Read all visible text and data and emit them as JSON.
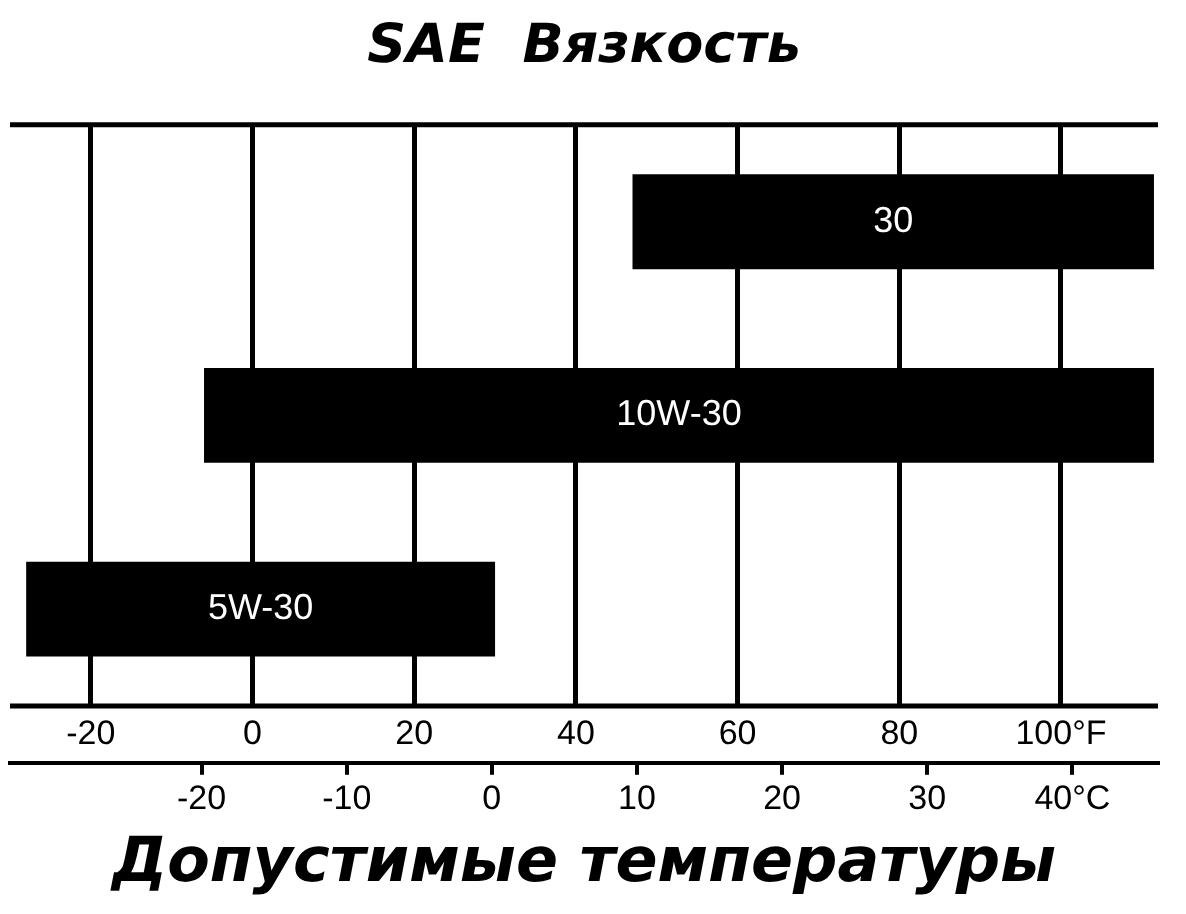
{
  "chart_data": {
    "type": "bar",
    "orientation": "horizontal",
    "title": "SAE  Вязкость",
    "xlabel": "Допустимые температуры",
    "categories": [
      "30",
      "10W-30",
      "5W-30"
    ],
    "base": [
      47,
      -6,
      -28
    ],
    "values": [
      64.5,
      117.5,
      58
    ],
    "color": "#000000",
    "xlim": [
      -30,
      112
    ],
    "xticks": [
      -20,
      0,
      20,
      40,
      60,
      80,
      {
        "value": 100,
        "label": "100°F"
      }
    ],
    "x2lim": [
      -33.2,
      45.9
    ],
    "x2ticks": [
      -20,
      -10,
      0,
      10,
      20,
      30,
      {
        "value": 40,
        "label": "40°C"
      }
    ],
    "grid": "x"
  }
}
